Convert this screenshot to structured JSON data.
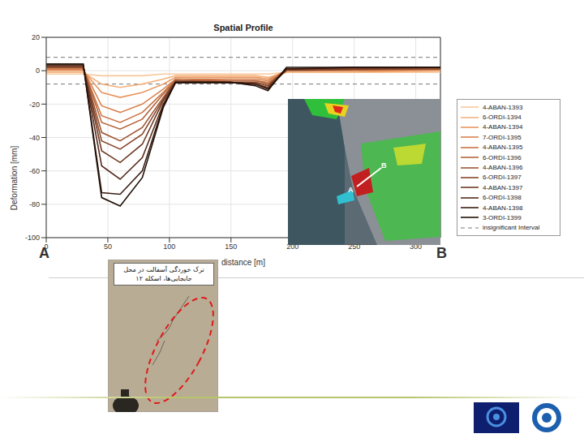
{
  "chart_data": {
    "type": "line",
    "title": "Spatial Profile",
    "x_label": "distance [m]",
    "y_label": "Deformation [mm]",
    "xlim": [
      0,
      320
    ],
    "xticks": [
      0,
      50,
      100,
      150,
      200,
      250,
      300
    ],
    "ylim": [
      -100,
      20
    ],
    "yticks": [
      -100,
      -80,
      -60,
      -40,
      -20,
      0,
      20
    ],
    "grid": true,
    "legend": "right",
    "x": [
      0,
      30,
      45,
      60,
      78,
      95,
      105,
      150,
      170,
      180,
      195,
      250,
      320
    ],
    "series": [
      {
        "name": "4-ABAN-1393",
        "color": "#f9c89b",
        "values": [
          -2,
          -2,
          -3,
          -3,
          -3,
          -2,
          -2,
          -2,
          -2,
          -2,
          -1,
          -1,
          -1
        ]
      },
      {
        "name": "6-ORDI-1394",
        "color": "#f4b27c",
        "values": [
          -1,
          -1,
          -8,
          -10,
          -8,
          -5,
          -3,
          -3,
          -3,
          -4,
          -1,
          -1,
          0
        ]
      },
      {
        "name": "4-ABAN-1394",
        "color": "#e8955d",
        "values": [
          0,
          0,
          -13,
          -16,
          -13,
          -8,
          -4,
          -4,
          -4,
          -5,
          0,
          0,
          0
        ]
      },
      {
        "name": "7-ORDI-1395",
        "color": "#d9824e",
        "values": [
          1,
          1,
          -21,
          -25,
          -20,
          -11,
          -5,
          -5,
          -5,
          -6,
          0,
          0,
          1
        ]
      },
      {
        "name": "4-ABAN-1395",
        "color": "#c97444",
        "values": [
          1,
          1,
          -27,
          -31,
          -25,
          -13,
          -5,
          -6,
          -6,
          -7,
          0,
          0,
          1
        ]
      },
      {
        "name": "6-ORDI-1396",
        "color": "#b4643b",
        "values": [
          2,
          2,
          -31,
          -35,
          -29,
          -14,
          -6,
          -6,
          -6,
          -8,
          0,
          1,
          1
        ]
      },
      {
        "name": "4-ABAN-1396",
        "color": "#9e5533",
        "values": [
          2,
          2,
          -37,
          -42,
          -34,
          -16,
          -6,
          -7,
          -7,
          -9,
          0,
          1,
          1
        ]
      },
      {
        "name": "6-ORDI-1397",
        "color": "#87472b",
        "values": [
          2,
          2,
          -42,
          -47,
          -38,
          -17,
          -6,
          -7,
          -7,
          -9,
          1,
          1,
          1
        ]
      },
      {
        "name": "4-ABAN-1397",
        "color": "#6e3923",
        "values": [
          3,
          3,
          -48,
          -55,
          -44,
          -18,
          -7,
          -7,
          -8,
          -10,
          1,
          1,
          2
        ]
      },
      {
        "name": "6-ORDI-1398",
        "color": "#552b1b",
        "values": [
          3,
          3,
          -57,
          -65,
          -52,
          -20,
          -7,
          -7,
          -8,
          -11,
          1,
          2,
          2
        ]
      },
      {
        "name": "4-ABAN-1398",
        "color": "#3b1d12",
        "values": [
          4,
          4,
          -73,
          -74,
          -60,
          -21,
          -7,
          -7,
          -8,
          -11,
          1,
          2,
          2
        ]
      },
      {
        "name": "3-ORDI-1399",
        "color": "#1f0f08",
        "values": [
          4,
          4,
          -76,
          -81,
          -64,
          -22,
          -7,
          -7,
          -9,
          -12,
          2,
          2,
          2
        ]
      }
    ],
    "insignificant_interval": {
      "name": "insignificant Interval",
      "values": [
        -8,
        8
      ],
      "color": "#777777",
      "line_style": "dashed"
    },
    "annotations": [
      "A",
      "B",
      "ترک خوردگی آسفالت در محل جابجایی‌ها، اسکله ۱۲"
    ]
  }
}
